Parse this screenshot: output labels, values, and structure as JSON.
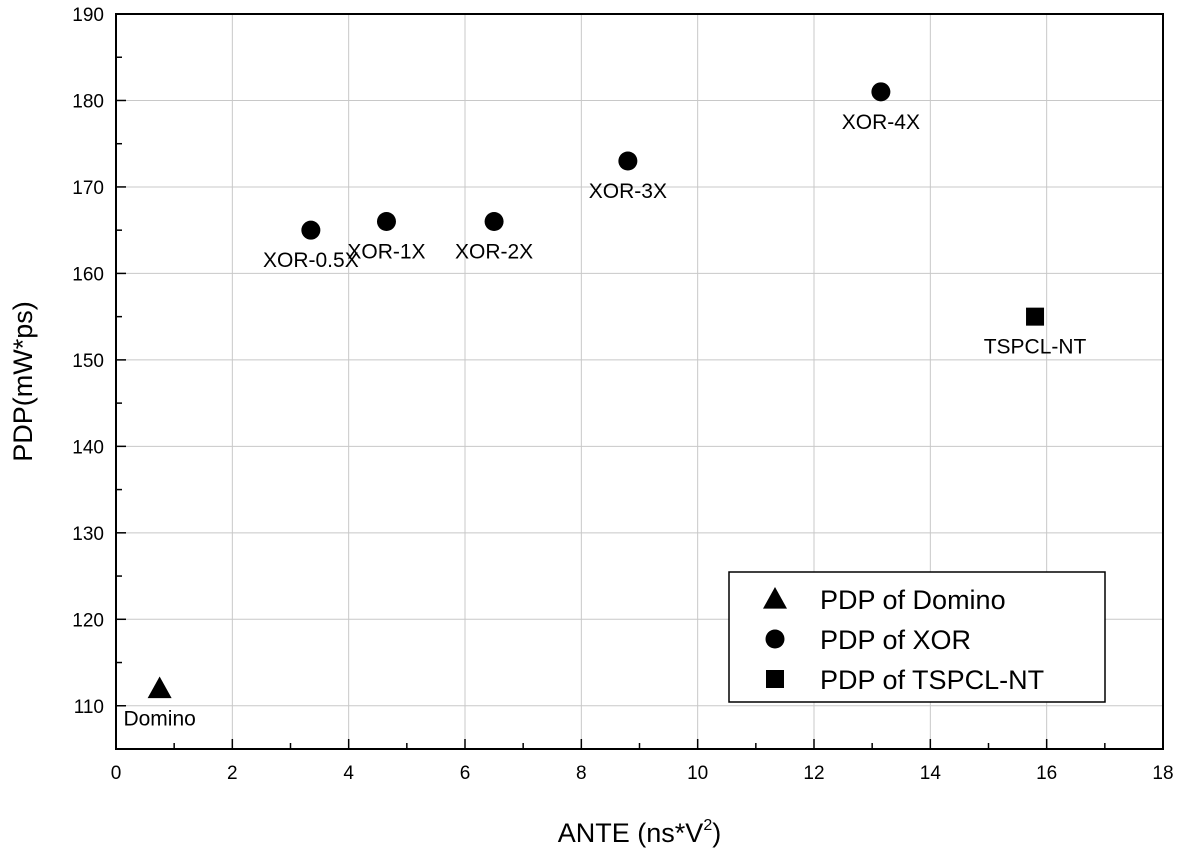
{
  "chart_data": {
    "type": "scatter",
    "title": "",
    "xlabel": "ANTE (ns*V",
    "xlabel_sup": "2",
    "xlabel_close": ")",
    "ylabel": "PDP(mW*ps)",
    "xlim": [
      0,
      18
    ],
    "ylim": [
      105,
      190
    ],
    "xticks": [
      0,
      2,
      4,
      6,
      8,
      10,
      12,
      14,
      16,
      18
    ],
    "yticks": [
      110,
      120,
      130,
      140,
      150,
      160,
      170,
      180,
      190
    ],
    "grid": true,
    "legend_position": "bottom-right",
    "series": [
      {
        "name": "PDP of Domino",
        "marker": "triangle",
        "color": "#000000",
        "points": [
          {
            "x": 0.75,
            "y": 112,
            "label": "Domino",
            "label_pos": "below"
          }
        ]
      },
      {
        "name": "PDP of XOR",
        "marker": "circle",
        "color": "#000000",
        "points": [
          {
            "x": 3.35,
            "y": 165,
            "label": "XOR-0.5X",
            "label_pos": "below"
          },
          {
            "x": 4.65,
            "y": 166,
            "label": "XOR-1X",
            "label_pos": "below"
          },
          {
            "x": 6.5,
            "y": 166,
            "label": "XOR-2X",
            "label_pos": "below"
          },
          {
            "x": 8.8,
            "y": 173,
            "label": "XOR-3X",
            "label_pos": "below"
          },
          {
            "x": 13.15,
            "y": 181,
            "label": "XOR-4X",
            "label_pos": "below"
          }
        ]
      },
      {
        "name": "PDP of TSPCL-NT",
        "marker": "square",
        "color": "#000000",
        "points": [
          {
            "x": 15.8,
            "y": 155,
            "label": "TSPCL-NT",
            "label_pos": "below"
          }
        ]
      }
    ]
  }
}
